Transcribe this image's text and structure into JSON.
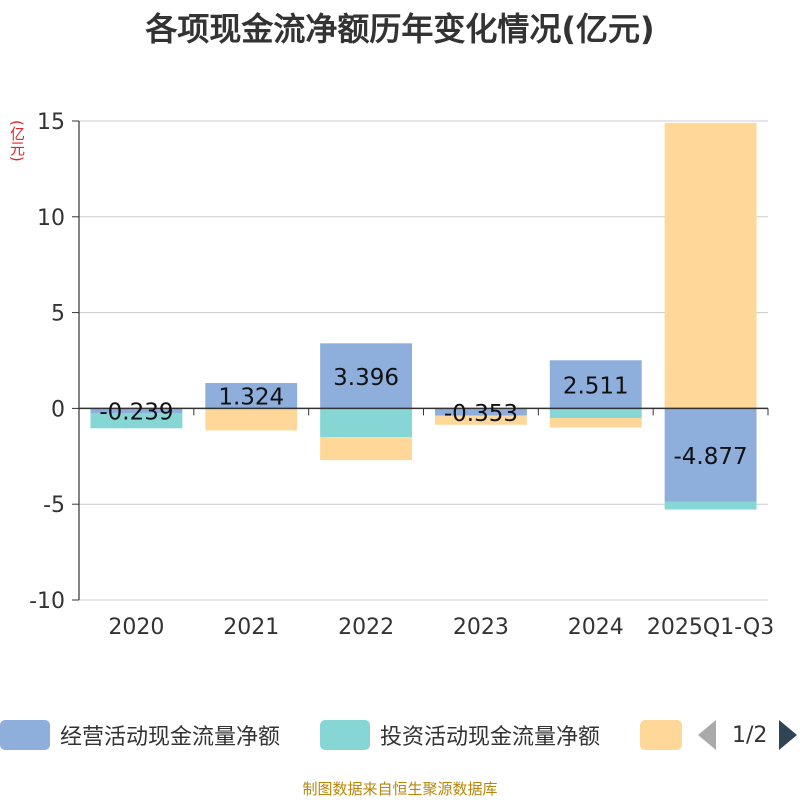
{
  "chart_data": {
    "type": "bar",
    "stacked": true,
    "title": "各项现金流净额历年变化情况(亿元)",
    "ylabel": "(亿元)",
    "xlabel": "",
    "ylim": [
      -10,
      15
    ],
    "yticks": [
      15,
      10,
      5,
      0,
      -5,
      -10
    ],
    "ytick_labels": [
      "15",
      "10",
      "5",
      "0",
      "-5",
      "-10"
    ],
    "categories": [
      "2020",
      "2021",
      "2022",
      "2023",
      "2024",
      "2025Q1-Q3"
    ],
    "series": [
      {
        "name": "经营活动现金流量净额",
        "color": "#8eaedc",
        "values": [
          -0.239,
          1.324,
          3.396,
          -0.353,
          2.511,
          -4.877
        ]
      },
      {
        "name": "投资活动现金流量净额",
        "color": "#86d6d6",
        "values": [
          -0.8,
          -0.05,
          -1.5,
          -0.05,
          -0.5,
          -0.4
        ]
      },
      {
        "name": "",
        "color": "#fed799",
        "values": [
          0,
          -1.1,
          -1.2,
          -0.45,
          -0.5,
          14.9
        ]
      }
    ],
    "data_labels": [
      "-0.239",
      "1.324",
      "3.396",
      "-0.353",
      "2.511",
      "-4.877"
    ],
    "grid": true,
    "legend_position": "bottom"
  },
  "legend": {
    "items": [
      {
        "label": "经营活动现金流量净额",
        "color": "#8eaedc"
      },
      {
        "label": "投资活动现金流量净额",
        "color": "#86d6d6"
      },
      {
        "label": "",
        "color": "#fed799"
      }
    ],
    "page": "1/2"
  },
  "source": "制图数据来自恒生聚源数据库"
}
